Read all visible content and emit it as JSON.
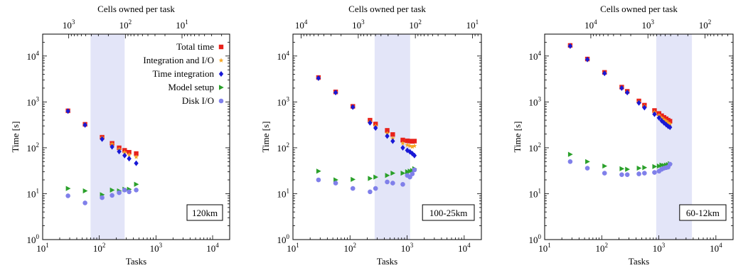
{
  "figure": {
    "top_axis_label": "Cells owned per task",
    "x_axis_label": "Tasks",
    "y_axis_label": "Time [s]"
  },
  "legend": [
    {
      "key": "total",
      "label": "Total time",
      "color": "#e8211a",
      "marker": "square"
    },
    {
      "key": "intio",
      "label": "Integration and  I/O",
      "color": "#f5a623",
      "marker": "star"
    },
    {
      "key": "integ",
      "label": "Time integration",
      "color": "#1919d6",
      "marker": "diamond"
    },
    {
      "key": "setup",
      "label": "Model setup",
      "color": "#2aa02a",
      "marker": "triangle-right"
    },
    {
      "key": "disk",
      "label": "Disk I/O",
      "color": "#8080ea",
      "marker": "circle"
    }
  ],
  "chart_data": [
    {
      "type": "scatter",
      "panel_label": "120km",
      "x_scale": "log",
      "y_scale": "log",
      "xlim": [
        10,
        20000
      ],
      "ylim": [
        1,
        30000
      ],
      "x_ticks": [
        "10^1",
        "10^2",
        "10^3",
        "10^4"
      ],
      "y_ticks": [
        "10^0",
        "10^1",
        "10^2",
        "10^3",
        "10^4"
      ],
      "top_axis": {
        "ticks": [
          "10^3",
          "10^2",
          "10^1"
        ],
        "positions_in_tasks": [
          28.84,
          288.4,
          2884
        ]
      },
      "shaded_range": [
        70,
        280
      ],
      "legend_position": "top-right",
      "series": [
        {
          "name": "Total time",
          "x": [
            28,
            56,
            112,
            168,
            224,
            280,
            336,
            448
          ],
          "y": [
            640,
            325,
            170,
            125,
            100,
            88,
            80,
            75
          ]
        },
        {
          "name": "Integration and  I/O",
          "x": [
            28,
            56,
            112,
            168,
            224,
            280,
            336,
            448
          ],
          "y": [
            630,
            320,
            165,
            120,
            93,
            80,
            71,
            63
          ]
        },
        {
          "name": "Time integration",
          "x": [
            28,
            56,
            112,
            168,
            224,
            280,
            336,
            448
          ],
          "y": [
            630,
            315,
            155,
            105,
            83,
            68,
            58,
            46
          ]
        },
        {
          "name": "Model setup",
          "x": [
            28,
            56,
            112,
            168,
            224,
            280,
            336,
            448
          ],
          "y": [
            13,
            11.5,
            9.5,
            12,
            11.5,
            12.5,
            12.5,
            16
          ]
        },
        {
          "name": "Disk I/O",
          "x": [
            28,
            56,
            112,
            168,
            224,
            280,
            336,
            448
          ],
          "y": [
            9,
            6.3,
            8.2,
            9.2,
            10.5,
            12,
            11,
            12
          ]
        }
      ]
    },
    {
      "type": "scatter",
      "panel_label": "100-25km",
      "x_scale": "log",
      "y_scale": "log",
      "xlim": [
        10,
        20000
      ],
      "ylim": [
        1,
        30000
      ],
      "x_ticks": [
        "10^1",
        "10^2",
        "10^3",
        "10^4"
      ],
      "y_ticks": [
        "10^0",
        "10^1",
        "10^2",
        "10^3",
        "10^4"
      ],
      "top_axis": {
        "ticks": [
          "10^4",
          "10^3",
          "10^2",
          "10^1"
        ],
        "positions_in_tasks": [
          13.94,
          139.4,
          1394,
          13940
        ]
      },
      "shaded_range": [
        270,
        1130
      ],
      "legend_position": "none",
      "series": [
        {
          "name": "Total time",
          "x": [
            28,
            56,
            112,
            224,
            280,
            448,
            560,
            840,
            1008,
            1120,
            1232,
            1344
          ],
          "y": [
            3400,
            1650,
            800,
            400,
            330,
            240,
            195,
            148,
            142,
            140,
            138,
            140
          ]
        },
        {
          "name": "Integration and  I/O",
          "x": [
            28,
            56,
            112,
            224,
            280,
            448,
            560,
            840,
            1008,
            1120,
            1232,
            1344
          ],
          "y": [
            3350,
            1620,
            780,
            370,
            300,
            205,
            160,
            125,
            115,
            110,
            105,
            110
          ]
        },
        {
          "name": "Time integration",
          "x": [
            28,
            56,
            112,
            224,
            280,
            448,
            560,
            840,
            1008,
            1120,
            1232,
            1344
          ],
          "y": [
            3300,
            1600,
            770,
            350,
            270,
            180,
            140,
            100,
            88,
            82,
            75,
            68
          ]
        },
        {
          "name": "Model setup",
          "x": [
            28,
            56,
            112,
            224,
            280,
            448,
            560,
            840,
            1008,
            1120,
            1232,
            1344
          ],
          "y": [
            31,
            20,
            20.5,
            21.5,
            23,
            25,
            28,
            28,
            30,
            31,
            32,
            35
          ]
        },
        {
          "name": "Disk I/O",
          "x": [
            28,
            56,
            112,
            224,
            280,
            448,
            560,
            840,
            1008,
            1120,
            1232,
            1344
          ],
          "y": [
            20,
            17,
            13,
            11,
            13,
            18,
            17,
            16,
            25,
            23,
            27,
            33
          ]
        }
      ]
    },
    {
      "type": "scatter",
      "panel_label": "60-12km",
      "x_scale": "log",
      "y_scale": "log",
      "xlim": [
        10,
        20000
      ],
      "ylim": [
        1,
        30000
      ],
      "x_ticks": [
        "10^1",
        "10^2",
        "10^3",
        "10^4"
      ],
      "y_ticks": [
        "10^0",
        "10^1",
        "10^2",
        "10^3",
        "10^4"
      ],
      "top_axis": {
        "ticks": [
          "10^4",
          "10^3",
          "10^2"
        ],
        "positions_in_tasks": [
          64.4,
          644,
          6440
        ]
      },
      "shaded_range": [
        900,
        3800
      ],
      "legend_position": "none",
      "series": [
        {
          "name": "Total time",
          "x": [
            28,
            56,
            112,
            224,
            280,
            448,
            560,
            840,
            1008,
            1120,
            1232,
            1344,
            1456,
            1568
          ],
          "y": [
            17000,
            8600,
            4400,
            2100,
            1700,
            1050,
            850,
            650,
            560,
            500,
            460,
            430,
            400,
            380
          ]
        },
        {
          "name": "Integration and  I/O",
          "x": [
            28,
            56,
            112,
            224,
            280,
            448,
            560,
            840,
            1008,
            1120,
            1232,
            1344,
            1456,
            1568
          ],
          "y": [
            16800,
            8500,
            4300,
            2050,
            1650,
            1000,
            800,
            600,
            510,
            450,
            410,
            380,
            350,
            330
          ]
        },
        {
          "name": "Time integration",
          "x": [
            28,
            56,
            112,
            224,
            280,
            448,
            560,
            840,
            1008,
            1120,
            1232,
            1344,
            1456,
            1568
          ],
          "y": [
            16500,
            8400,
            4200,
            2000,
            1600,
            950,
            750,
            540,
            450,
            390,
            350,
            320,
            295,
            280
          ]
        },
        {
          "name": "Model setup",
          "x": [
            28,
            56,
            112,
            224,
            280,
            448,
            560,
            840,
            1008,
            1120,
            1232,
            1344,
            1456,
            1568
          ],
          "y": [
            72,
            50,
            40,
            35,
            34,
            36,
            37,
            39,
            40,
            42,
            41,
            42,
            43,
            45
          ]
        },
        {
          "name": "Disk I/O",
          "x": [
            28,
            56,
            112,
            224,
            280,
            448,
            560,
            840,
            1008,
            1120,
            1232,
            1344,
            1456,
            1568
          ],
          "y": [
            50,
            36,
            28,
            26,
            26,
            27,
            28,
            29,
            31,
            34,
            36,
            37,
            38,
            44
          ]
        }
      ]
    }
  ]
}
